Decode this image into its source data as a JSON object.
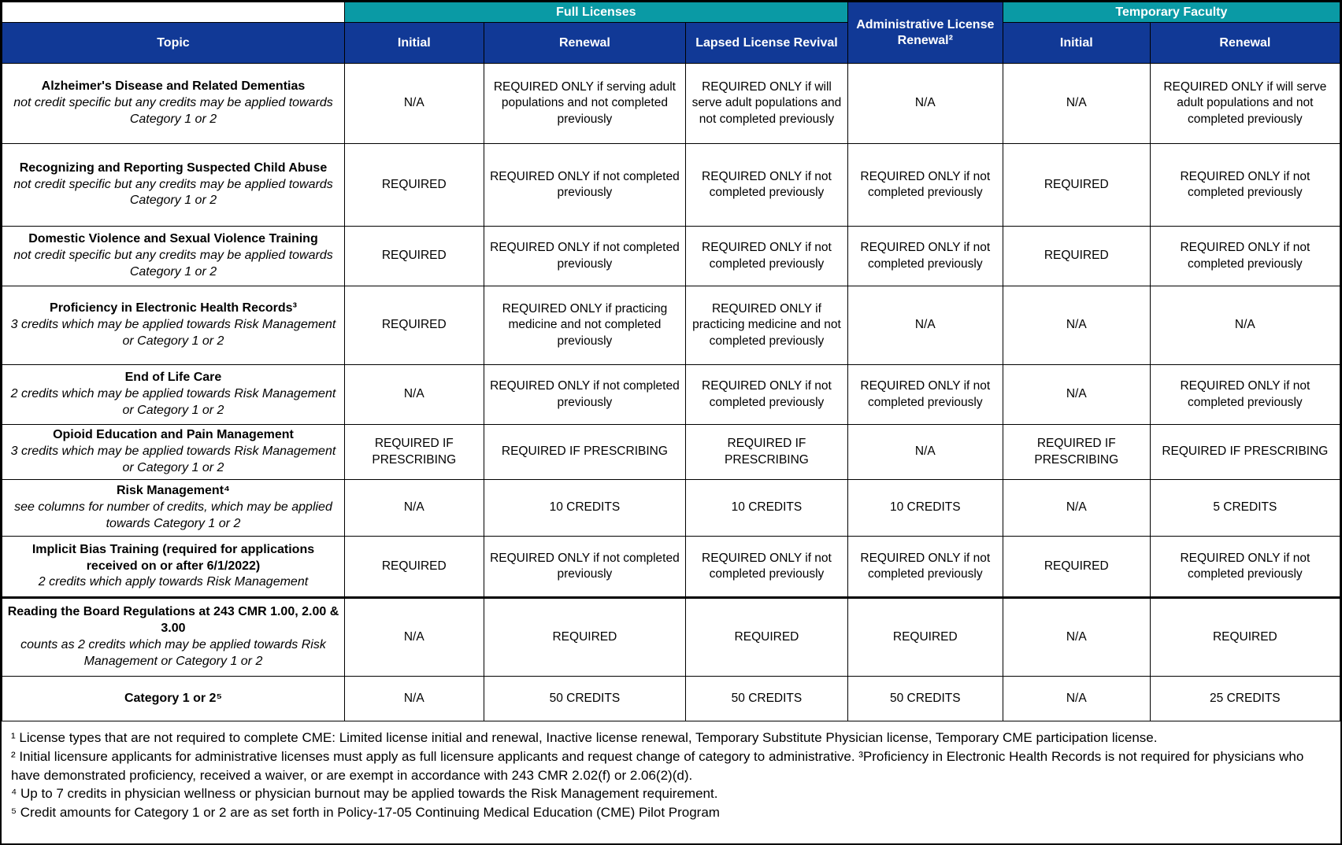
{
  "colors": {
    "teal": "#0A9AA5",
    "navy": "#113996",
    "border": "#000000"
  },
  "header": {
    "group_full_licenses": "Full Licenses",
    "group_admin": "Administrative License Renewal²",
    "group_temporary_faculty": "Temporary Faculty",
    "columns": [
      "Topic",
      "Initial",
      "Renewal",
      "Lapsed License Revival",
      "Initial",
      "Renewal"
    ]
  },
  "rows": [
    {
      "topic_title": "Alzheimer's Disease and Related Dementias",
      "topic_sub": "not credit specific but any credits may be applied towards Category 1 or 2",
      "cells": [
        "N/A",
        "REQUIRED ONLY if serving adult populations and not completed previously",
        "REQUIRED ONLY if will serve adult populations and not completed previously",
        "N/A",
        "N/A",
        "REQUIRED ONLY if will serve adult populations and not completed previously"
      ]
    },
    {
      "topic_title": "Recognizing and Reporting Suspected Child Abuse",
      "topic_sub": "not credit specific but any credits may be applied towards Category 1 or 2",
      "cells": [
        "REQUIRED",
        "REQUIRED ONLY if not completed previously",
        "REQUIRED ONLY if not completed previously",
        "REQUIRED ONLY if not completed previously",
        "REQUIRED",
        "REQUIRED ONLY if not completed previously"
      ]
    },
    {
      "topic_title": "Domestic Violence and Sexual Violence Training",
      "topic_sub": "not credit specific but any credits may be applied towards Category 1 or 2",
      "cells": [
        "REQUIRED",
        "REQUIRED ONLY if not completed previously",
        "REQUIRED ONLY if not completed previously",
        "REQUIRED ONLY if not completed previously",
        "REQUIRED",
        "REQUIRED ONLY if not completed previously"
      ]
    },
    {
      "topic_title": "Proficiency in Electronic Health Records³",
      "topic_sub": "3 credits which may be applied towards Risk Management or Category 1 or 2",
      "cells": [
        "REQUIRED",
        "REQUIRED ONLY if practicing medicine and not completed previously",
        "REQUIRED ONLY if practicing medicine and not completed previously",
        "N/A",
        "N/A",
        "N/A"
      ]
    },
    {
      "topic_title": "End of Life Care",
      "topic_sub": "2 credits which may be applied towards Risk Management or Category 1 or 2",
      "cells": [
        "N/A",
        "REQUIRED ONLY if not completed previously",
        "REQUIRED ONLY if not completed previously",
        "REQUIRED ONLY if not completed previously",
        "N/A",
        "REQUIRED ONLY if not completed previously"
      ]
    },
    {
      "topic_title": "Opioid Education and Pain Management",
      "topic_sub": "3 credits which may be applied towards Risk Management or Category 1 or 2",
      "cells": [
        "REQUIRED IF PRESCRIBING",
        "REQUIRED IF PRESCRIBING",
        "REQUIRED IF PRESCRIBING",
        "N/A",
        "REQUIRED IF PRESCRIBING",
        "REQUIRED IF PRESCRIBING"
      ]
    },
    {
      "topic_title": "Risk Management⁴",
      "topic_sub": "see columns for number of credits, which may be applied towards Category 1 or 2",
      "cells": [
        "N/A",
        "10 CREDITS",
        "10 CREDITS",
        "10 CREDITS",
        "N/A",
        "5 CREDITS"
      ]
    },
    {
      "topic_title": "Implicit Bias Training (required for applications received on or after 6/1/2022)",
      "topic_sub": "2 credits which apply towards Risk Management",
      "cells": [
        "REQUIRED",
        "REQUIRED ONLY if not completed previously",
        "REQUIRED ONLY if not completed previously",
        "REQUIRED ONLY if not completed previously",
        "REQUIRED",
        "REQUIRED ONLY if not completed previously"
      ]
    },
    {
      "topic_title": "Reading the Board Regulations at 243 CMR 1.00, 2.00 & 3.00",
      "topic_sub": "counts as 2 credits which may be applied towards Risk Management or Category 1 or 2",
      "cells": [
        "N/A",
        "REQUIRED",
        "REQUIRED",
        "REQUIRED",
        "N/A",
        "REQUIRED"
      ]
    },
    {
      "topic_title": "Category 1 or 2⁵",
      "topic_sub": "",
      "cells": [
        "N/A",
        "50 CREDITS",
        "50 CREDITS",
        "50 CREDITS",
        "N/A",
        "25 CREDITS"
      ]
    }
  ],
  "footnotes": [
    "¹ License types that are not required to complete CME: Limited license initial and renewal, Inactive license renewal, Temporary Substitute Physician license, Temporary CME participation license.",
    "² Initial licensure applicants for administrative licenses must apply as full licensure applicants and request change of category to administrative. ³Proficiency in Electronic Health Records is not required for physicians who have demonstrated proficiency, received a waiver, or are exempt in accordance with 243 CMR 2.02(f) or 2.06(2)(d).",
    "⁴ Up to 7 credits in physician wellness or physician burnout may be applied towards the Risk Management requirement.",
    "⁵ Credit amounts for Category 1 or 2 are as set forth in Policy-17-05 Continuing Medical Education (CME) Pilot Program"
  ]
}
